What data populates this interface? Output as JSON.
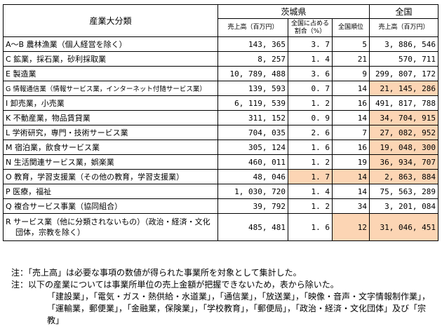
{
  "header": {
    "industry_col": "産業大分類",
    "ibaraki": "茨城県",
    "nation": "全国",
    "sales": "売上高（百万円）",
    "share": "全国に占める割合（%）",
    "rank": "全国順位",
    "nation_sales": "売上高（百万円）"
  },
  "rows": [
    {
      "name": "A～B 農林漁業（個人経営を除く）",
      "sales": "143, 365",
      "share": "3. 7",
      "rank": "5",
      "nation": "3, 886, 546",
      "hl_share": false,
      "hl_rank": false,
      "hl_nation": false
    },
    {
      "name": "C 鉱業，採石業，砂利採取業",
      "sales": "8, 257",
      "share": "1. 4",
      "rank": "21",
      "nation": "570, 711",
      "hl_share": false,
      "hl_rank": false,
      "hl_nation": false
    },
    {
      "name": "E 製造業",
      "sales": "10, 789, 488",
      "share": "3. 6",
      "rank": "9",
      "nation": "299, 807, 172",
      "hl_share": false,
      "hl_rank": false,
      "hl_nation": false
    },
    {
      "name": "G 情報通信業（情報サービス業，インターネット付随サービス業）",
      "sales": "139, 593",
      "share": "0. 7",
      "rank": "14",
      "nation": "21, 145, 286",
      "hl_share": false,
      "hl_rank": false,
      "hl_nation": true,
      "small": true
    },
    {
      "name": "I 卸売業，小売業",
      "sales": "6, 119, 539",
      "share": "1. 2",
      "rank": "16",
      "nation": "491, 817, 788",
      "hl_share": false,
      "hl_rank": false,
      "hl_nation": false
    },
    {
      "name": "K 不動産業，物品賃貸業",
      "sales": "311, 152",
      "share": "0. 9",
      "rank": "14",
      "nation": "34, 704, 915",
      "hl_share": false,
      "hl_rank": false,
      "hl_nation": true
    },
    {
      "name": "L 学術研究，専門・技術サービス業",
      "sales": "704, 035",
      "share": "2. 6",
      "rank": "7",
      "nation": "27, 082, 952",
      "hl_share": false,
      "hl_rank": false,
      "hl_nation": true
    },
    {
      "name": "M 宿泊業，飲食サービス業",
      "sales": "305, 124",
      "share": "1. 6",
      "rank": "16",
      "nation": "19, 048, 300",
      "hl_share": false,
      "hl_rank": false,
      "hl_nation": true
    },
    {
      "name": "N 生活関連サービス業，娯楽業",
      "sales": "460, 011",
      "share": "1. 2",
      "rank": "19",
      "nation": "36, 934, 707",
      "hl_share": false,
      "hl_rank": false,
      "hl_nation": true
    },
    {
      "name": "O 教育，学習支援業（その他の教育，学習支援業）",
      "sales": "48, 046",
      "share": "1. 7",
      "rank": "14",
      "nation": "2, 863, 884",
      "hl_share": true,
      "hl_rank": true,
      "hl_nation": true
    },
    {
      "name": "P 医療，福祉",
      "sales": "1, 030, 720",
      "share": "1. 4",
      "rank": "14",
      "nation": "75, 563, 289",
      "hl_share": false,
      "hl_rank": false,
      "hl_nation": false
    },
    {
      "name": "Q 複合サービス事業（協同組合）",
      "sales": "39, 792",
      "share": "1. 2",
      "rank": "34",
      "nation": "3, 201, 084",
      "hl_share": false,
      "hl_rank": false,
      "hl_nation": false
    },
    {
      "name": "R サービス業（他に分類されないもの）（政治・経済・文化団体，宗教を除く）",
      "sales": "485, 481",
      "share": "1. 6",
      "rank": "12",
      "nation": "31, 046, 451",
      "hl_share": false,
      "hl_rank": true,
      "hl_nation": true,
      "tall": true
    }
  ],
  "notes": {
    "n1": "注：「売上高」は必要な事項の数値が得られた事業所を対象として集計した。",
    "n2": "注：以下の産業については事業所単位の売上金額が把握できないため，表から除いた。",
    "n3": "「建設業」，「電気・ガス・熱供給・水道業」，「通信業」，「放送業」，「映像・音声・文字情報制作業」，「運輸業，郵便業」，「金融業，保険業」，「学校教育」，「郵便局」，「政治・経済・文化団体」及び「宗教」"
  },
  "colors": {
    "highlight": "#fcd5b4"
  }
}
